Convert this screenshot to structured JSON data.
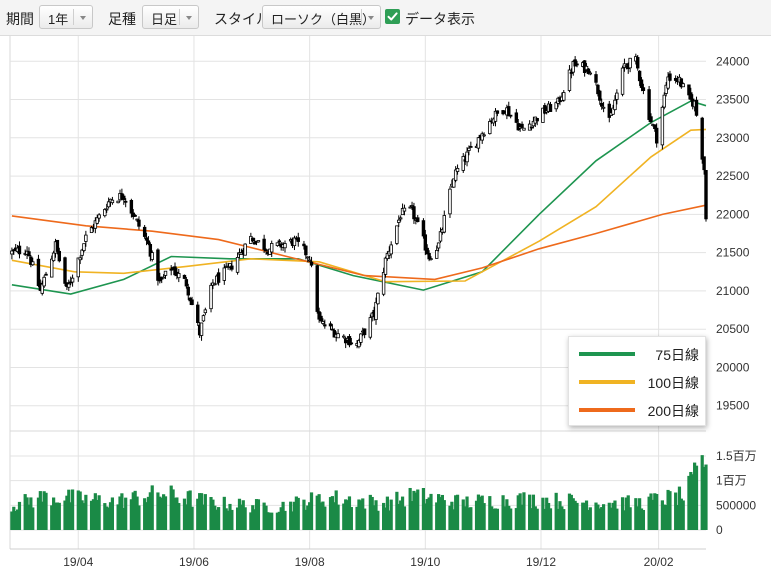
{
  "toolbar": {
    "period_label": "期間",
    "period_value": "1年",
    "bar_label": "足種",
    "bar_value": "日足",
    "style_label": "スタイル",
    "style_value": "ローソク（白黒）",
    "data_display_label": "データ表示",
    "data_display_checked": true
  },
  "colors": {
    "up": "#ffffff",
    "down": "#000000",
    "volume": "#1a8a46",
    "ma75": "#1e9550",
    "ma100": "#f0b323",
    "ma200": "#ee6a1c",
    "grid": "#e3e3e3"
  },
  "chart_data": {
    "type": "candlestick",
    "title": "",
    "price_axis": {
      "ticks": [
        24000,
        23500,
        23000,
        22500,
        22000,
        21500,
        21000,
        20500,
        20000,
        19500
      ],
      "range": [
        19170,
        24330
      ]
    },
    "volume_axis": {
      "ticks": [
        "1.5百万",
        "1百万",
        "500000",
        "0"
      ],
      "tick_values": [
        1500000,
        1000000,
        500000,
        0
      ],
      "range": [
        0,
        1500000
      ]
    },
    "x_ticks": [
      "19/04",
      "19/06",
      "19/08",
      "19/10",
      "19/12",
      "20/02"
    ],
    "x_tick_dates": [
      "2019-04-01",
      "2019-06-01",
      "2019-08-01",
      "2019-10-01",
      "2019-12-01",
      "2020-02-01"
    ],
    "date_range": [
      "2019-02-24",
      "2020-02-26"
    ],
    "ohlc_key_points": [
      [
        "2019-02-25",
        21500
      ],
      [
        "2019-03-05",
        21550
      ],
      [
        "2019-03-12",
        21000
      ],
      [
        "2019-03-20",
        21600
      ],
      [
        "2019-03-26",
        21000
      ],
      [
        "2019-04-05",
        21700
      ],
      [
        "2019-04-18",
        22200
      ],
      [
        "2019-04-25",
        22250
      ],
      [
        "2019-05-08",
        21600
      ],
      [
        "2019-05-14",
        21100
      ],
      [
        "2019-05-20",
        21300
      ],
      [
        "2019-05-28",
        21100
      ],
      [
        "2019-06-04",
        20450
      ],
      [
        "2019-06-11",
        21100
      ],
      [
        "2019-06-20",
        21300
      ],
      [
        "2019-07-01",
        21700
      ],
      [
        "2019-07-10",
        21550
      ],
      [
        "2019-07-24",
        21650
      ],
      [
        "2019-08-01",
        21450
      ],
      [
        "2019-08-06",
        20600
      ],
      [
        "2019-08-15",
        20450
      ],
      [
        "2019-08-26",
        20300
      ],
      [
        "2019-09-04",
        20700
      ],
      [
        "2019-09-10",
        21400
      ],
      [
        "2019-09-18",
        22000
      ],
      [
        "2019-09-24",
        22050
      ],
      [
        "2019-10-03",
        21450
      ],
      [
        "2019-10-08",
        21600
      ],
      [
        "2019-10-16",
        22500
      ],
      [
        "2019-10-25",
        22850
      ],
      [
        "2019-11-05",
        23250
      ],
      [
        "2019-11-12",
        23400
      ],
      [
        "2019-11-21",
        23100
      ],
      [
        "2019-12-03",
        23350
      ],
      [
        "2019-12-10",
        23450
      ],
      [
        "2019-12-18",
        23950
      ],
      [
        "2019-12-27",
        23900
      ],
      [
        "2020-01-06",
        23200
      ],
      [
        "2020-01-14",
        23950
      ],
      [
        "2020-01-20",
        24000
      ],
      [
        "2020-01-27",
        23300
      ],
      [
        "2020-01-31",
        23000
      ],
      [
        "2020-02-06",
        23800
      ],
      [
        "2020-02-12",
        23750
      ],
      [
        "2020-02-17",
        23500
      ],
      [
        "2020-02-20",
        23450
      ],
      [
        "2020-02-21",
        23300
      ],
      [
        "2020-02-25",
        22600
      ],
      [
        "2020-02-26",
        21950
      ]
    ],
    "series": [
      {
        "name": "75日線",
        "color_key": "ma75",
        "points": [
          [
            "2019-02-25",
            21080
          ],
          [
            "2019-03-28",
            20960
          ],
          [
            "2019-04-25",
            21150
          ],
          [
            "2019-05-20",
            21450
          ],
          [
            "2019-06-20",
            21420
          ],
          [
            "2019-07-26",
            21420
          ],
          [
            "2019-08-24",
            21200
          ],
          [
            "2019-09-30",
            21010
          ],
          [
            "2019-10-31",
            21250
          ],
          [
            "2019-11-30",
            22000
          ],
          [
            "2019-12-30",
            22700
          ],
          [
            "2020-01-28",
            23200
          ],
          [
            "2020-02-18",
            23480
          ],
          [
            "2020-02-26",
            23420
          ]
        ]
      },
      {
        "name": "100日線",
        "color_key": "ma100",
        "points": [
          [
            "2019-02-25",
            21400
          ],
          [
            "2019-03-30",
            21250
          ],
          [
            "2019-04-25",
            21230
          ],
          [
            "2019-05-28",
            21320
          ],
          [
            "2019-07-01",
            21420
          ],
          [
            "2019-08-06",
            21380
          ],
          [
            "2019-09-10",
            21120
          ],
          [
            "2019-10-22",
            21130
          ],
          [
            "2019-11-30",
            21650
          ],
          [
            "2019-12-30",
            22100
          ],
          [
            "2020-01-28",
            22750
          ],
          [
            "2020-02-18",
            23100
          ],
          [
            "2020-02-26",
            23110
          ]
        ]
      },
      {
        "name": "200日線",
        "color_key": "ma200",
        "points": [
          [
            "2019-02-25",
            21980
          ],
          [
            "2019-04-05",
            21850
          ],
          [
            "2019-05-10",
            21780
          ],
          [
            "2019-06-14",
            21670
          ],
          [
            "2019-07-20",
            21450
          ],
          [
            "2019-08-30",
            21200
          ],
          [
            "2019-10-06",
            21150
          ],
          [
            "2019-10-31",
            21300
          ],
          [
            "2019-11-30",
            21550
          ],
          [
            "2019-12-30",
            21750
          ],
          [
            "2020-02-03",
            22000
          ],
          [
            "2020-02-26",
            22120
          ]
        ]
      }
    ],
    "volume_profile": [
      [
        "2019-02-25",
        500000
      ],
      [
        "2019-03-15",
        680000
      ],
      [
        "2019-04-20",
        580000
      ],
      [
        "2019-05-15",
        740000
      ],
      [
        "2019-06-15",
        530000
      ],
      [
        "2019-07-15",
        470000
      ],
      [
        "2019-08-10",
        660000
      ],
      [
        "2019-09-10",
        540000
      ],
      [
        "2019-09-25",
        700000
      ],
      [
        "2019-10-20",
        560000
      ],
      [
        "2019-11-20",
        620000
      ],
      [
        "2019-12-20",
        580000
      ],
      [
        "2020-01-20",
        540000
      ],
      [
        "2020-02-15",
        700000
      ],
      [
        "2020-02-26",
        1500000
      ]
    ],
    "legend": [
      {
        "label": "75日線",
        "color_key": "ma75"
      },
      {
        "label": "100日線",
        "color_key": "ma100"
      },
      {
        "label": "200日線",
        "color_key": "ma200"
      }
    ]
  }
}
